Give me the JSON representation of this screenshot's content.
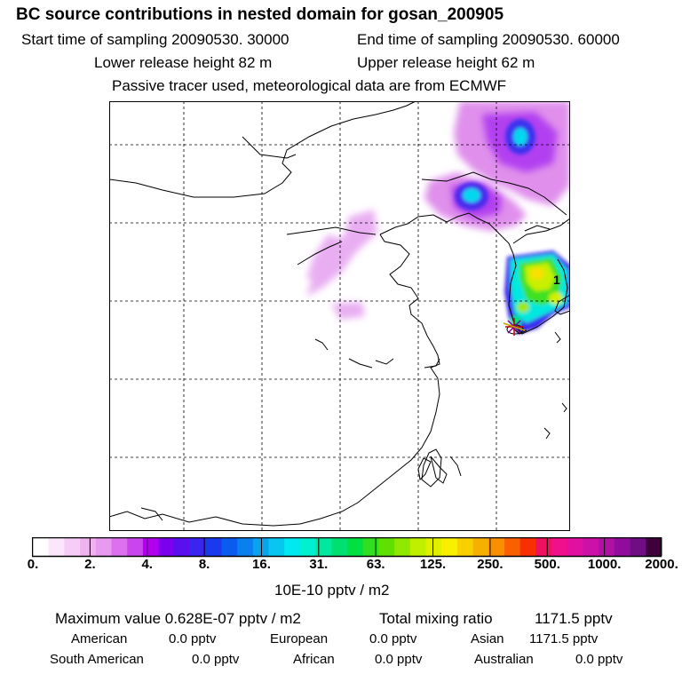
{
  "header": {
    "title": "BC  source contributions in nested domain for gosan_200905",
    "start_time": "Start time of sampling 20090530. 30000",
    "end_time": "End time of sampling 20090530. 60000",
    "lower_height": "Lower release height   82 m",
    "upper_height": "Upper release height   62 m",
    "tracer_note": "Passive tracer used, meteorological data are from ECMWF"
  },
  "map": {
    "receptor_label": "1",
    "receptor_marker": "star-marker"
  },
  "colorbar": {
    "ticks": [
      "0.",
      "2.",
      "4.",
      "8.",
      "16.",
      "31.",
      "63.",
      "125.",
      "250.",
      "500.",
      "1000.",
      "2000."
    ],
    "colors": [
      "#ffffff",
      "#fbe6fb",
      "#f6cdf6",
      "#efb3ef",
      "#e899f0",
      "#dc70ee",
      "#cc44ee",
      "#b000ee",
      "#7a00ee",
      "#5a10ee",
      "#3a25ee",
      "#1a3aee",
      "#0a5cee",
      "#0a80ee",
      "#0aa4ee",
      "#08c6f0",
      "#00e8f0",
      "#00f0d0",
      "#00e8a0",
      "#00e070",
      "#00e040",
      "#30e020",
      "#60e000",
      "#90e800",
      "#c0f000",
      "#e0f000",
      "#f8f000",
      "#f8d000",
      "#f8b000",
      "#f89000",
      "#f86000",
      "#f83000",
      "#f01060",
      "#f0108c",
      "#e010a0",
      "#cc10a8",
      "#b010a4",
      "#900c9c",
      "#700c84",
      "#40003c"
    ],
    "unit": "10E-10 pptv / m2"
  },
  "stats": {
    "max_value": "Maximum value  0.628E-07 pptv / m2",
    "total_label": "Total mixing ratio",
    "total_value": "1171.5 pptv",
    "american_label": "American",
    "american_value": "0.0 pptv",
    "european_label": "European",
    "european_value": "0.0 pptv",
    "asian_label": "Asian",
    "asian_value": "1171.5 pptv",
    "south_american_label": "South American",
    "south_american_value": "0.0 pptv",
    "african_label": "African",
    "african_value": "0.0 pptv",
    "australian_label": "Australian",
    "australian_value": "0.0 pptv"
  }
}
